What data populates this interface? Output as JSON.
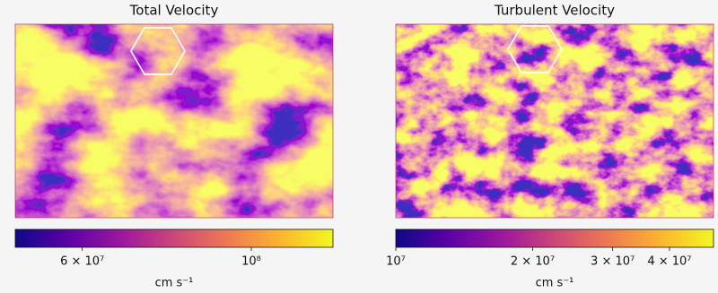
{
  "chart_data": [
    {
      "type": "heatmap",
      "title": "Total Velocity",
      "colormap": "plasma",
      "log": true,
      "clim": [
        49000000,
        128000000
      ],
      "cticks": [
        {
          "value": 60000000,
          "label": "6 × 10⁷"
        },
        {
          "value": 100000000,
          "label": "10⁸"
        }
      ],
      "colorbar_label": "cm s⁻¹"
    },
    {
      "type": "heatmap",
      "title": "Turbulent Velocity",
      "colormap": "plasma",
      "log": true,
      "clim": [
        10000000,
        50000000
      ],
      "cticks": [
        {
          "value": 10000000,
          "label": "10⁷"
        },
        {
          "value": 20000000,
          "label": "2 × 10⁷"
        },
        {
          "value": 30000000,
          "label": "3 × 10⁷"
        },
        {
          "value": 40000000,
          "label": "4 × 10⁷"
        }
      ],
      "colorbar_label": "cm s⁻¹"
    }
  ]
}
